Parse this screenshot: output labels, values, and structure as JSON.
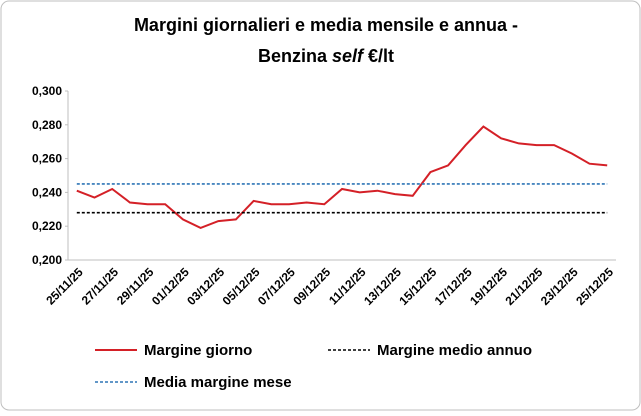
{
  "chart_data": {
    "type": "line",
    "title": [
      "Margini giornalieri e media mensile e annua -",
      "Benzina",
      "self",
      "€/lt"
    ],
    "categories": [
      "25/11/25",
      null,
      "27/11/25",
      null,
      "29/11/25",
      null,
      "01/12/25",
      null,
      "03/12/25",
      null,
      "05/12/25",
      null,
      "07/12/25",
      null,
      "09/12/25",
      null,
      "11/12/25",
      null,
      "13/12/25",
      null,
      "15/12/25",
      null,
      "17/12/25",
      null,
      "19/12/25",
      null,
      "21/12/25",
      null,
      "23/12/25",
      null,
      "25/12/25"
    ],
    "series": [
      {
        "name": "Margine giorno",
        "color": "#d42027",
        "dash": false,
        "values": [
          0.241,
          0.237,
          0.242,
          0.234,
          0.233,
          0.233,
          0.224,
          0.219,
          0.223,
          0.224,
          0.235,
          0.233,
          0.233,
          0.234,
          0.233,
          0.242,
          0.24,
          0.241,
          0.239,
          0.238,
          0.252,
          0.256,
          0.268,
          0.279,
          0.272,
          0.269,
          0.268,
          0.268,
          0.263,
          0.257,
          0.256
        ]
      },
      {
        "name": "Margine medio annuo",
        "color": "#000000",
        "dash": true,
        "values": [
          0.228,
          0.228,
          0.228,
          0.228,
          0.228,
          0.228,
          0.228,
          0.228,
          0.228,
          0.228,
          0.228,
          0.228,
          0.228,
          0.228,
          0.228,
          0.228,
          0.228,
          0.228,
          0.228,
          0.228,
          0.228,
          0.228,
          0.228,
          0.228,
          0.228,
          0.228,
          0.228,
          0.228,
          0.228,
          0.228,
          0.228
        ]
      },
      {
        "name": "Media margine mese",
        "color": "#2e75b6",
        "dash": true,
        "values": [
          0.245,
          0.245,
          0.245,
          0.245,
          0.245,
          0.245,
          0.245,
          0.245,
          0.245,
          0.245,
          0.245,
          0.245,
          0.245,
          0.245,
          0.245,
          0.245,
          0.245,
          0.245,
          0.245,
          0.245,
          0.245,
          0.245,
          0.245,
          0.245,
          0.245,
          0.245,
          0.245,
          0.245,
          0.245,
          0.245,
          0.245
        ]
      }
    ],
    "ylim": [
      0.2,
      0.3
    ],
    "yticks": [
      {
        "value": 0.2,
        "label": "0,200"
      },
      {
        "value": 0.22,
        "label": "0,220"
      },
      {
        "value": 0.24,
        "label": "0,240"
      },
      {
        "value": 0.26,
        "label": "0,260"
      },
      {
        "value": 0.28,
        "label": "0,280"
      },
      {
        "value": 0.3,
        "label": "0,300"
      }
    ],
    "grid": false,
    "legend": "bottom"
  }
}
